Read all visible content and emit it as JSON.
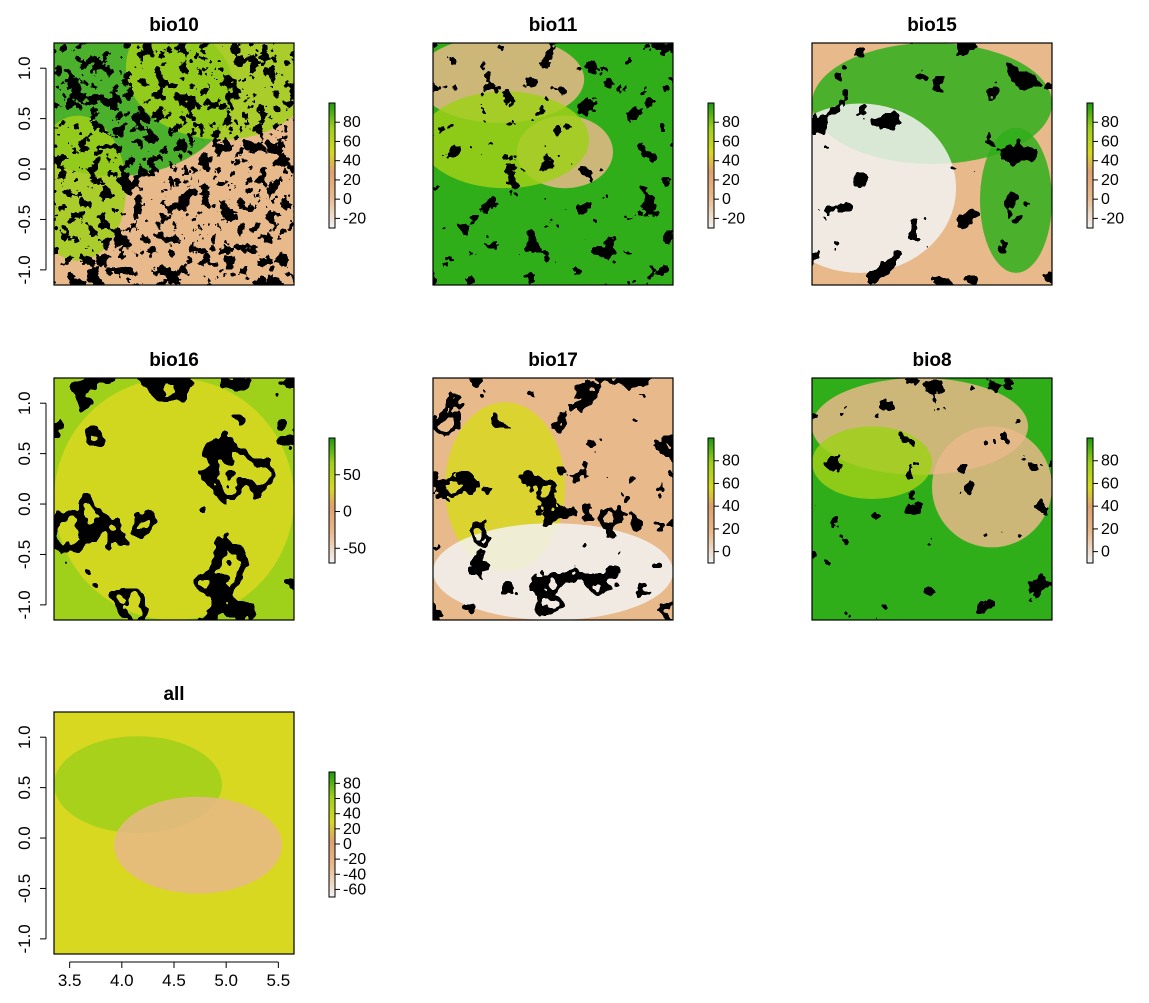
{
  "chart_data": [
    {
      "type": "heatmap",
      "title": "bio10",
      "xlim": [
        3.35,
        5.65
      ],
      "ylim": [
        -1.15,
        1.25
      ],
      "x_ticks": [],
      "y_ticks": [
        "-1.0",
        "-0.5",
        "0.0",
        "0.5",
        "1.0"
      ],
      "legend": {
        "range": [
          -30,
          100
        ],
        "ticks": [
          80,
          60,
          40,
          20,
          0,
          -20
        ],
        "labels": [
          "80",
          "60",
          "40",
          "20",
          "0",
          "-20"
        ],
        "position": "right"
      },
      "pattern": "bio10"
    },
    {
      "type": "heatmap",
      "title": "bio11",
      "xlim": [
        3.35,
        5.65
      ],
      "ylim": [
        -1.15,
        1.25
      ],
      "x_ticks": [],
      "y_ticks": [],
      "legend": {
        "range": [
          -30,
          100
        ],
        "ticks": [
          80,
          60,
          40,
          20,
          0,
          -20
        ],
        "labels": [
          "80",
          "60",
          "40",
          "20",
          "0",
          "-20"
        ],
        "position": "right"
      },
      "pattern": "bio11"
    },
    {
      "type": "heatmap",
      "title": "bio15",
      "xlim": [
        3.35,
        5.65
      ],
      "ylim": [
        -1.15,
        1.25
      ],
      "x_ticks": [],
      "y_ticks": [],
      "legend": {
        "range": [
          -30,
          100
        ],
        "ticks": [
          80,
          60,
          40,
          20,
          0,
          -20
        ],
        "labels": [
          "80",
          "60",
          "40",
          "20",
          "0",
          "-20"
        ],
        "position": "right"
      },
      "pattern": "bio15"
    },
    {
      "type": "heatmap",
      "title": "bio16",
      "xlim": [
        3.35,
        5.65
      ],
      "ylim": [
        -1.15,
        1.25
      ],
      "x_ticks": [],
      "y_ticks": [
        "-1.0",
        "-0.5",
        "0.0",
        "0.5",
        "1.0"
      ],
      "legend": {
        "range": [
          -70,
          100
        ],
        "ticks": [
          50,
          0,
          -50
        ],
        "labels": [
          "50",
          "0",
          "-50"
        ],
        "position": "right"
      },
      "pattern": "bio16"
    },
    {
      "type": "heatmap",
      "title": "bio17",
      "xlim": [
        3.35,
        5.65
      ],
      "ylim": [
        -1.15,
        1.25
      ],
      "x_ticks": [],
      "y_ticks": [],
      "legend": {
        "range": [
          -10,
          100
        ],
        "ticks": [
          80,
          60,
          40,
          20,
          0
        ],
        "labels": [
          "80",
          "60",
          "40",
          "20",
          "0"
        ],
        "position": "right"
      },
      "pattern": "bio17"
    },
    {
      "type": "heatmap",
      "title": "bio8",
      "xlim": [
        3.35,
        5.65
      ],
      "ylim": [
        -1.15,
        1.25
      ],
      "x_ticks": [],
      "y_ticks": [],
      "legend": {
        "range": [
          -10,
          100
        ],
        "ticks": [
          80,
          60,
          40,
          20,
          0
        ],
        "labels": [
          "80",
          "60",
          "40",
          "20",
          "0"
        ],
        "position": "right"
      },
      "pattern": "bio8"
    },
    {
      "type": "heatmap",
      "title": "all",
      "xlim": [
        3.35,
        5.65
      ],
      "ylim": [
        -1.15,
        1.25
      ],
      "x_ticks": [
        "3.5",
        "4.0",
        "4.5",
        "5.0",
        "5.5"
      ],
      "y_ticks": [
        "-1.0",
        "-0.5",
        "0.0",
        "0.5",
        "1.0"
      ],
      "legend": {
        "range": [
          -70,
          95
        ],
        "ticks": [
          80,
          60,
          40,
          20,
          0,
          -20,
          -40,
          -60
        ],
        "labels": [
          "80",
          "60",
          "40",
          "20",
          "0",
          "-20",
          "-40",
          "-60"
        ],
        "position": "right"
      },
      "pattern": "all"
    }
  ],
  "colors": {
    "low": "#f2f2f2",
    "tan": "#e8b98a",
    "orange": "#e0a070",
    "yellow": "#d8d820",
    "lime": "#9fd01a",
    "green": "#2fae1a",
    "dark_green": "#1b9a10"
  }
}
